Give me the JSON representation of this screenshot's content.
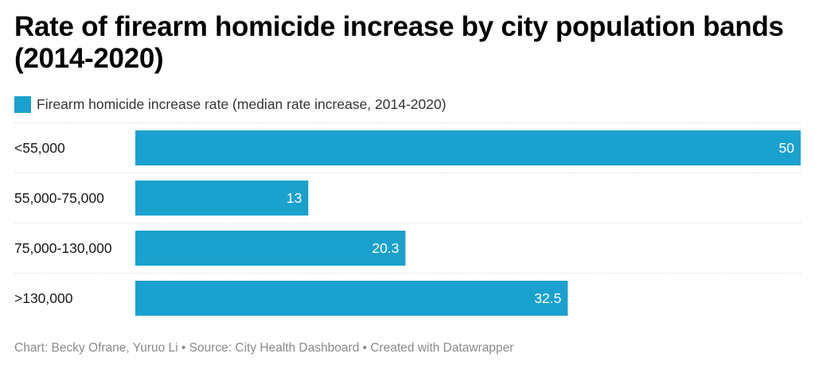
{
  "title": "Rate of firearm homicide increase by city population bands (2014-2020)",
  "footer": "Chart: Becky Ofrane, Yuruo Li • Source: City Health Dashboard • Created with Datawrapper",
  "colors": {
    "bar": "#1aa1ce",
    "separator": "#d9d9d9",
    "label_on_bar": "#ffffff",
    "category_text": "#181818"
  },
  "chart_data": {
    "type": "bar",
    "orientation": "horizontal",
    "title": "Rate of firearm homicide increase by city population bands (2014-2020)",
    "categories": [
      "<55,000",
      "55,000-75,000",
      "75,000-130,000",
      ">130,000"
    ],
    "series": [
      {
        "name": "Firearm homicide increase rate (median rate increase, 2014-2020)",
        "values": [
          50,
          13,
          20.3,
          32.5
        ],
        "labels": [
          "50",
          "13",
          "20.3",
          "32.5"
        ]
      }
    ],
    "xlim": [
      0,
      50
    ],
    "grid": false,
    "legend_position": "top-left"
  }
}
